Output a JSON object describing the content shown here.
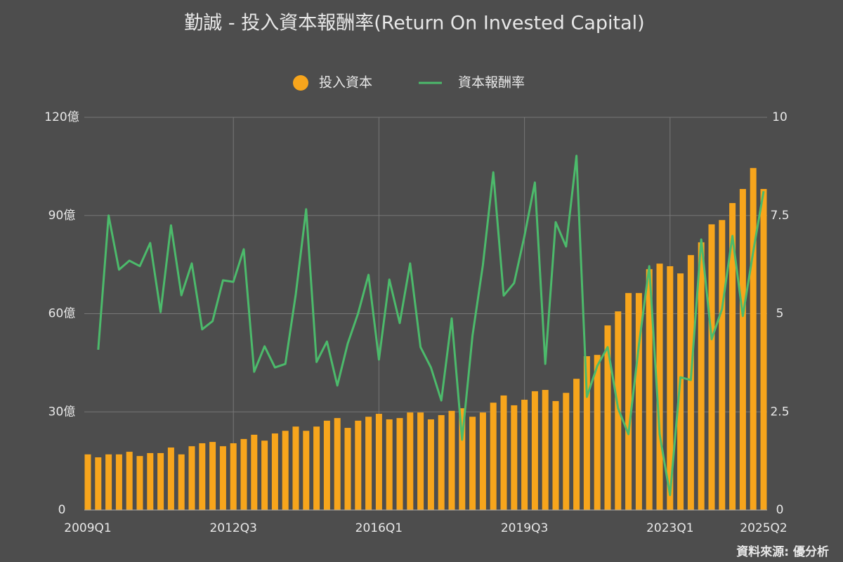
{
  "chart_data": {
    "type": "bar-line",
    "title": "勤誠 - 投入資本報酬率(Return On Invested Capital)",
    "source": "資料來源: 優分析",
    "categories": [
      "2009Q1",
      null,
      null,
      null,
      null,
      null,
      null,
      null,
      null,
      null,
      null,
      null,
      null,
      null,
      "2012Q3",
      null,
      null,
      null,
      null,
      null,
      null,
      null,
      null,
      null,
      null,
      null,
      null,
      null,
      "2016Q1",
      null,
      null,
      null,
      null,
      null,
      null,
      null,
      null,
      null,
      null,
      null,
      null,
      null,
      "2019Q3",
      null,
      null,
      null,
      null,
      null,
      null,
      null,
      null,
      null,
      null,
      null,
      null,
      null,
      "2023Q1",
      null,
      null,
      null,
      null,
      null,
      null,
      null,
      null,
      "2025Q2"
    ],
    "series": [
      {
        "name": "投入資本",
        "type": "bar",
        "color": "#f7a51c",
        "values": [
          17.0,
          16.1,
          17.0,
          17.0,
          17.8,
          16.5,
          17.4,
          17.4,
          19.1,
          17.0,
          19.5,
          20.4,
          20.8,
          19.5,
          20.4,
          21.7,
          23.0,
          21.2,
          23.4,
          24.2,
          25.5,
          24.2,
          25.5,
          27.3,
          28.1,
          25.1,
          27.3,
          28.5,
          29.4,
          27.7,
          28.1,
          29.8,
          29.8,
          27.7,
          29.0,
          30.3,
          31.1,
          28.5,
          29.8,
          32.8,
          35.0,
          32.0,
          33.7,
          36.3,
          36.7,
          33.3,
          35.8,
          40.1,
          47.0,
          47.4,
          56.4,
          60.7,
          66.3,
          66.3,
          73.6,
          75.3,
          74.5,
          72.3,
          77.9,
          81.8,
          87.3,
          88.6,
          93.8,
          98.1,
          104.5,
          98.1
        ]
      },
      {
        "name": "資本報酬率",
        "type": "line",
        "axis": "y2",
        "color": "#4cba6b",
        "values": [
          null,
          4.08,
          7.5,
          6.12,
          6.35,
          6.21,
          6.8,
          5.04,
          7.25,
          5.47,
          6.28,
          4.6,
          4.81,
          5.85,
          5.81,
          6.64,
          3.52,
          4.17,
          3.63,
          3.72,
          5.49,
          7.66,
          3.77,
          4.29,
          3.17,
          4.24,
          5.01,
          5.99,
          3.83,
          5.87,
          4.76,
          6.28,
          4.15,
          3.63,
          2.79,
          4.88,
          1.79,
          4.44,
          6.24,
          8.6,
          5.46,
          5.78,
          6.98,
          8.34,
          3.72,
          7.33,
          6.71,
          9.02,
          2.88,
          3.67,
          4.15,
          2.59,
          1.93,
          4.19,
          6.21,
          1.93,
          0.38,
          3.38,
          3.31,
          6.89,
          4.35,
          5.12,
          6.98,
          4.94,
          6.58,
          8.12
        ]
      }
    ],
    "ylim": [
      0,
      120
    ],
    "yticks": [
      {
        "value": 0,
        "label": "0"
      },
      {
        "value": 30,
        "label": "30億"
      },
      {
        "value": 60,
        "label": "60億"
      },
      {
        "value": 90,
        "label": "90億"
      },
      {
        "value": 120,
        "label": "120億"
      }
    ],
    "y2lim": [
      0,
      10
    ],
    "y2ticks": [
      0,
      2.5,
      5,
      7.5,
      10
    ],
    "grid": true,
    "legend": "top"
  }
}
